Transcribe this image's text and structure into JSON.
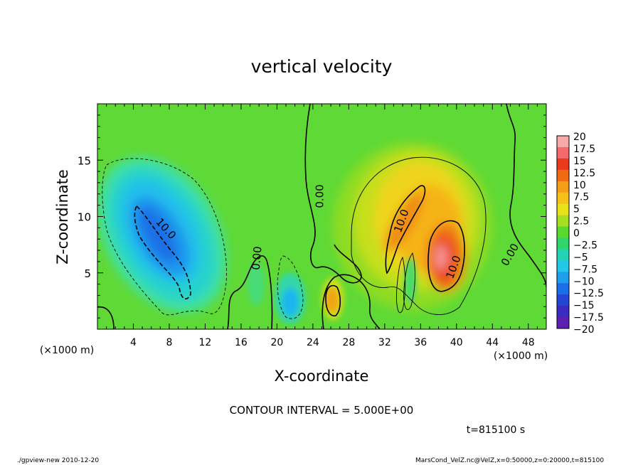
{
  "chart_data": {
    "type": "heatmap",
    "title": "vertical velocity",
    "xlabel": "X-coordinate",
    "ylabel": "Z-coordinate",
    "x_unit": "(×1000 m)",
    "y_unit": "(×1000 m)",
    "xlim": [
      0,
      50
    ],
    "ylim": [
      0,
      20
    ],
    "xticks": [
      4,
      8,
      12,
      16,
      20,
      24,
      28,
      32,
      36,
      40,
      44,
      48
    ],
    "yticks": [
      5,
      10,
      15
    ],
    "colorbar": {
      "labels": [
        "20",
        "17.5",
        "15",
        "12.5",
        "10",
        "7.5",
        "5",
        "2.5",
        "0",
        "−2.5",
        "−5",
        "−7.5",
        "−10",
        "−12.5",
        "−15",
        "−17.5",
        "−20"
      ],
      "colors": [
        "#f7a8a8",
        "#f26a6a",
        "#ea3a1e",
        "#f06a12",
        "#f59d16",
        "#f6c11a",
        "#e9e21a",
        "#a7de22",
        "#59d92e",
        "#30d56c",
        "#22d3b4",
        "#22c9e6",
        "#1e9fee",
        "#1b6fe6",
        "#2444d6",
        "#3b2bc0",
        "#5d1fae"
      ]
    },
    "contour_labels": [
      {
        "text": "10.0",
        "x": 7.6,
        "y": 8.9,
        "angle": 48
      },
      {
        "text": "0.00",
        "x": 24.8,
        "y": 11.8,
        "angle": -90
      },
      {
        "text": "0.00",
        "x": 17.8,
        "y": 6.3,
        "angle": -85
      },
      {
        "text": "10.0",
        "x": 33.9,
        "y": 9.6,
        "angle": -70
      },
      {
        "text": "10.0",
        "x": 39.7,
        "y": 5.5,
        "angle": -70
      },
      {
        "text": "0.00",
        "x": 46.0,
        "y": 6.6,
        "angle": -60
      }
    ],
    "contour_interval_text": "CONTOUR INTERVAL = 5.000E+00",
    "time_text": "t=815100 s"
  },
  "footer": {
    "left": "./gpview-new  2010-12-20",
    "right": "MarsCond_VelZ.nc@VelZ,x=0:50000,z=0:20000,t=815100"
  }
}
